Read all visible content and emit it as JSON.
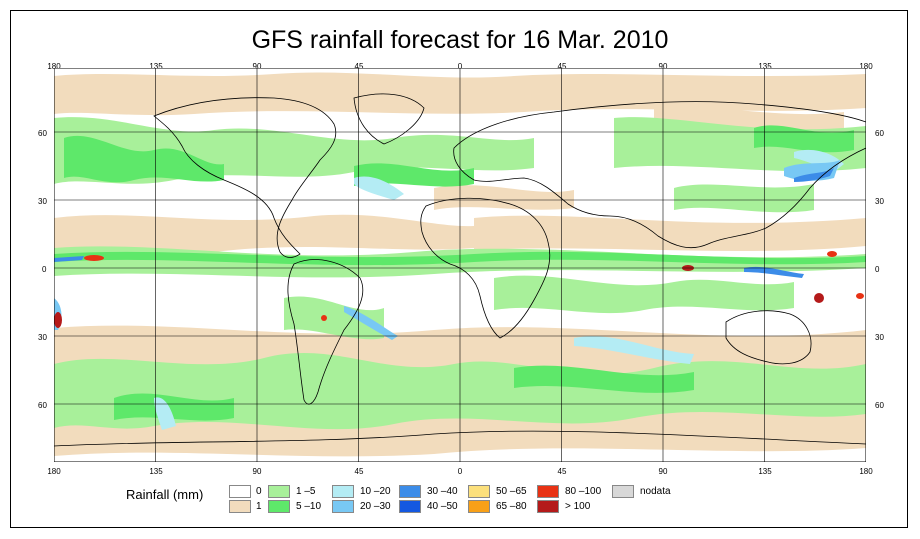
{
  "title": "GFS rainfall forecast for 16 Mar. 2010",
  "lon_ticks": [
    "180",
    "135",
    "90",
    "45",
    "0",
    "45",
    "90",
    "135",
    "180"
  ],
  "lat_ticks": [
    "60",
    "30",
    "0",
    "30",
    "60"
  ],
  "legend": {
    "title": "Rainfall (mm)",
    "items": [
      {
        "label": "0",
        "color": "#ffffff"
      },
      {
        "label": "1",
        "color": "#f2dcbd"
      },
      {
        "label": "1 –5",
        "color": "#a8f09a"
      },
      {
        "label": "5 –10",
        "color": "#5ee86a"
      },
      {
        "label": "10 –20",
        "color": "#b4ecf4"
      },
      {
        "label": "20 –30",
        "color": "#78c8f4"
      },
      {
        "label": "30 –40",
        "color": "#3c8ce8"
      },
      {
        "label": "40 –50",
        "color": "#1458e0"
      },
      {
        "label": "50 –65",
        "color": "#fce07c"
      },
      {
        "label": "65 –80",
        "color": "#f8a018"
      },
      {
        "label": "80 –100",
        "color": "#e83214"
      },
      {
        "label": "> 100",
        "color": "#b41a1a"
      },
      {
        "label": "nodata",
        "color": "#d8d8d8"
      }
    ]
  }
}
